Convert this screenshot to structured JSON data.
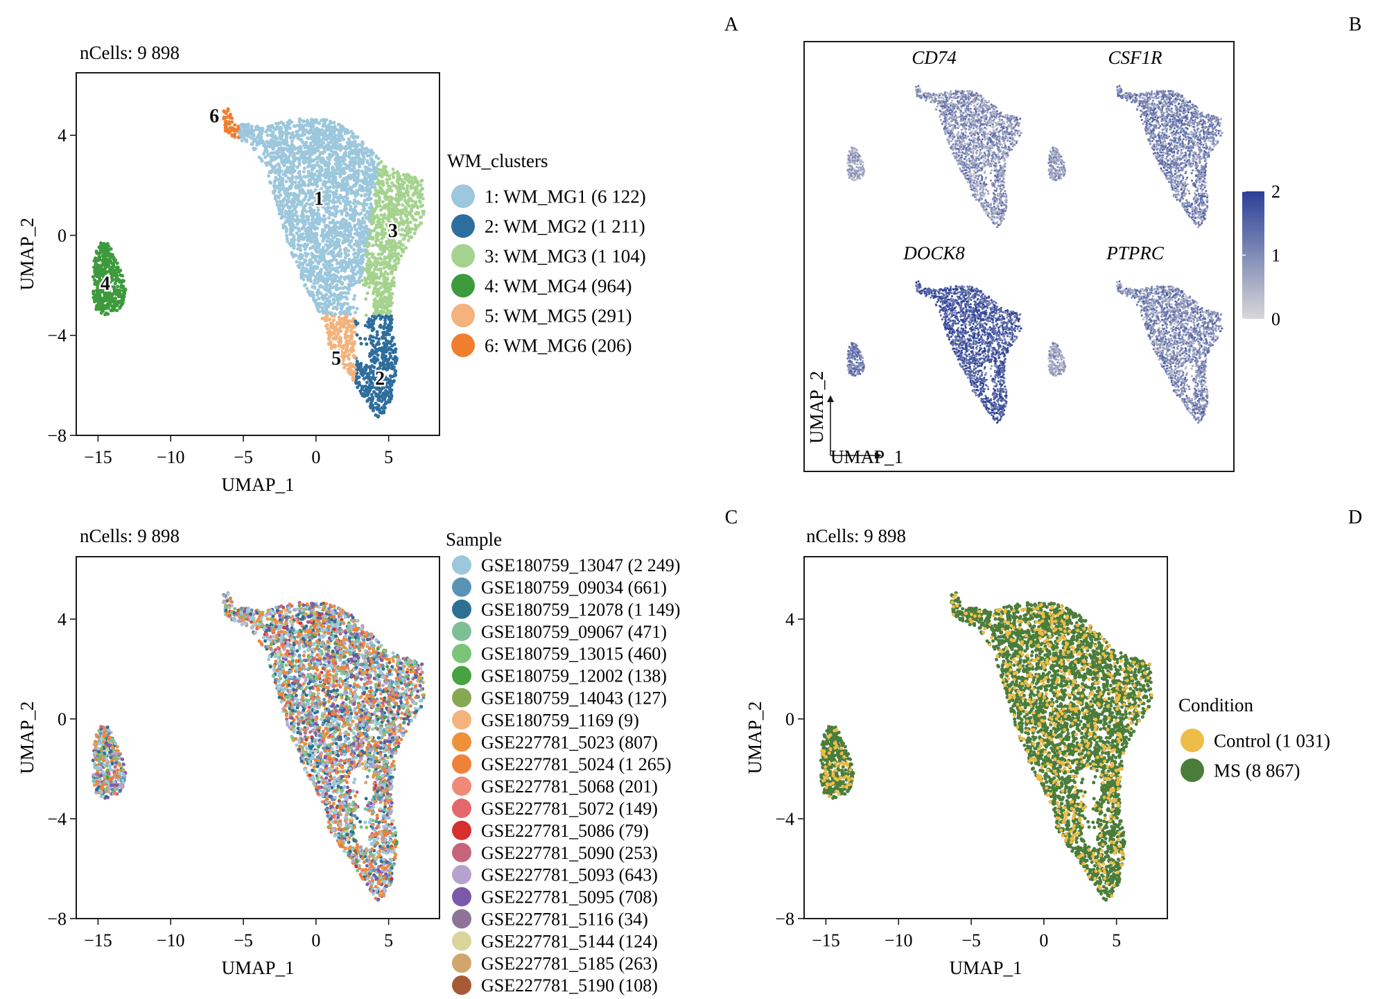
{
  "panel_letters": [
    "A",
    "B",
    "C",
    "D"
  ],
  "axis_common": {
    "xlabel": "UMAP_1",
    "ylabel": "UMAP_2",
    "xlim": [
      -16.5,
      8.5
    ],
    "ylim": [
      -8,
      6.5
    ],
    "xticks": [
      -15,
      -10,
      -5,
      0,
      5
    ],
    "yticks": [
      -8,
      -4,
      0,
      4
    ]
  },
  "chart_data": [
    {
      "panel": "A",
      "type": "scatter",
      "title": "nCells: 9 898",
      "legend_title": "WM_clusters",
      "legend_position": "right",
      "series": [
        {
          "label": "1",
          "name": "1: WM_MG1 (6 122)",
          "color": "#9cc7dc",
          "center": [
            0.2,
            1.5
          ]
        },
        {
          "label": "2",
          "name": "2: WM_MG2 (1 211)",
          "color": "#2e6e9e",
          "center": [
            4.4,
            -5.7
          ]
        },
        {
          "label": "3",
          "name": "3: WM_MG3 (1 104)",
          "color": "#a5d38f",
          "center": [
            5.3,
            0.2
          ]
        },
        {
          "label": "4",
          "name": "4: WM_MG4 (964)",
          "color": "#3d9a3d",
          "center": [
            -14.5,
            -1.9
          ]
        },
        {
          "label": "5",
          "name": "5: WM_MG5 (291)",
          "color": "#f4b27c",
          "center": [
            1.4,
            -4.9
          ]
        },
        {
          "label": "6",
          "name": "6: WM_MG6 (206)",
          "color": "#f07e2f",
          "center": [
            -7.0,
            4.8
          ]
        }
      ]
    },
    {
      "panel": "B",
      "type": "scatter",
      "subtype": "feature-plot",
      "genes": [
        "CD74",
        "CSF1R",
        "DOCK8",
        "PTPRC"
      ],
      "mean_expression": [
        0.85,
        1.0,
        1.6,
        0.95
      ],
      "colorbar": {
        "min": 0,
        "max": 2,
        "ticks": [
          "2",
          "1",
          "0"
        ],
        "low_color": "#d8d8d8",
        "high_color": "#2b3f96"
      },
      "xlabel": "UMAP_1",
      "ylabel": "UMAP_2"
    },
    {
      "panel": "C",
      "type": "scatter",
      "title": "nCells: 9 898",
      "legend_title": "Sample",
      "legend_position": "right",
      "series": [
        {
          "name": "GSE180759_13047 (2 249)",
          "color": "#9cc7dc"
        },
        {
          "name": "GSE180759_09034 (661)",
          "color": "#5b93b8"
        },
        {
          "name": "GSE180759_12078 (1 149)",
          "color": "#2f6f93"
        },
        {
          "name": "GSE180759_09067 (471)",
          "color": "#7fbf96"
        },
        {
          "name": "GSE180759_13015 (460)",
          "color": "#7cc47a"
        },
        {
          "name": "GSE180759_12002 (138)",
          "color": "#46a341"
        },
        {
          "name": "GSE180759_14043 (127)",
          "color": "#87a852"
        },
        {
          "name": "GSE180759_1169 (9)",
          "color": "#f4b27c"
        },
        {
          "name": "GSE227781_5023 (807)",
          "color": "#f0913a"
        },
        {
          "name": "GSE227781_5024 (1 265)",
          "color": "#ef8139"
        },
        {
          "name": "GSE227781_5068 (201)",
          "color": "#f08a78"
        },
        {
          "name": "GSE227781_5072 (149)",
          "color": "#e4676c"
        },
        {
          "name": "GSE227781_5086 (79)",
          "color": "#d7302f"
        },
        {
          "name": "GSE227781_5090 (253)",
          "color": "#c4657c"
        },
        {
          "name": "GSE227781_5093 (643)",
          "color": "#b7a2cd"
        },
        {
          "name": "GSE227781_5095 (708)",
          "color": "#7c5aab"
        },
        {
          "name": "GSE227781_5116 (34)",
          "color": "#8e7398"
        },
        {
          "name": "GSE227781_5144 (124)",
          "color": "#dad59b"
        },
        {
          "name": "GSE227781_5185 (263)",
          "color": "#d1a66d"
        },
        {
          "name": "GSE227781_5190 (108)",
          "color": "#a85a36"
        }
      ]
    },
    {
      "panel": "D",
      "type": "scatter",
      "title": "nCells: 9 898",
      "legend_title": "Condition",
      "legend_position": "right",
      "series": [
        {
          "name": "Control (1 031)",
          "color": "#eebc48"
        },
        {
          "name": "MS (8 867)",
          "color": "#4b7d3a"
        }
      ]
    }
  ]
}
